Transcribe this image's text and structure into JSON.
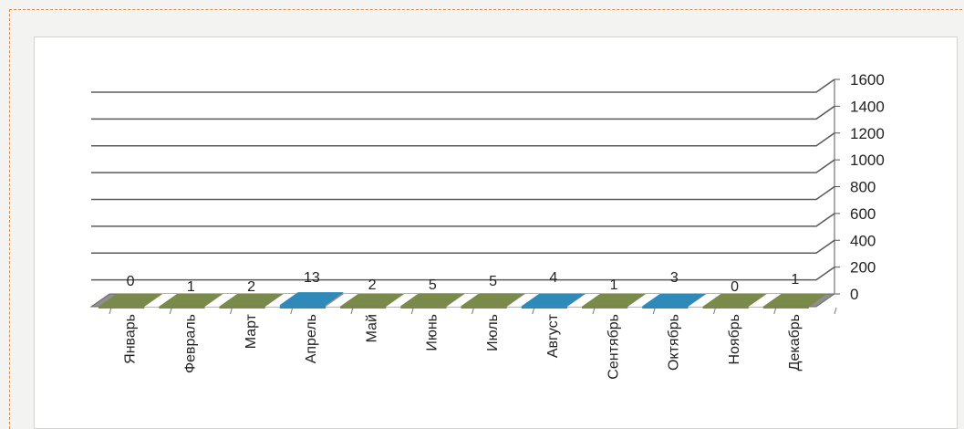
{
  "chart_data": {
    "type": "bar",
    "categories": [
      "Январь",
      "Февраль",
      "Март",
      "Апрель",
      "Май",
      "Июнь",
      "Июль",
      "Август",
      "Сентябрь",
      "Октябрь",
      "Ноябрь",
      "Декабрь"
    ],
    "values": [
      0,
      1,
      2,
      13,
      2,
      5,
      5,
      4,
      1,
      3,
      0,
      1
    ],
    "data_labels": [
      "0",
      "1",
      "2",
      "13",
      "2",
      "5",
      "5",
      "4",
      "1",
      "3",
      "0",
      "1"
    ],
    "ylim": [
      0,
      1600
    ],
    "y_ticks": [
      0,
      200,
      400,
      600,
      800,
      1000,
      1200,
      1400,
      1600
    ],
    "y_tick_labels": [
      "0",
      "200",
      "400",
      "600",
      "800",
      "1000",
      "1200",
      "1400",
      "1600"
    ],
    "y_axis_side": "right",
    "grid": true,
    "style": "3d",
    "title": "",
    "xlabel": "",
    "ylabel": "",
    "colors": {
      "olive": "#7a8a4a",
      "blue": "#2e8ab8",
      "gridline": "#5a5a5a",
      "stripe": "#ffffff"
    },
    "bar_colors": [
      "#7a8a4a",
      "#7a8a4a",
      "#7a8a4a",
      "#2e8ab8",
      "#7a8a4a",
      "#7a8a4a",
      "#7a8a4a",
      "#2e8ab8",
      "#7a8a4a",
      "#2e8ab8",
      "#7a8a4a",
      "#7a8a4a"
    ]
  }
}
